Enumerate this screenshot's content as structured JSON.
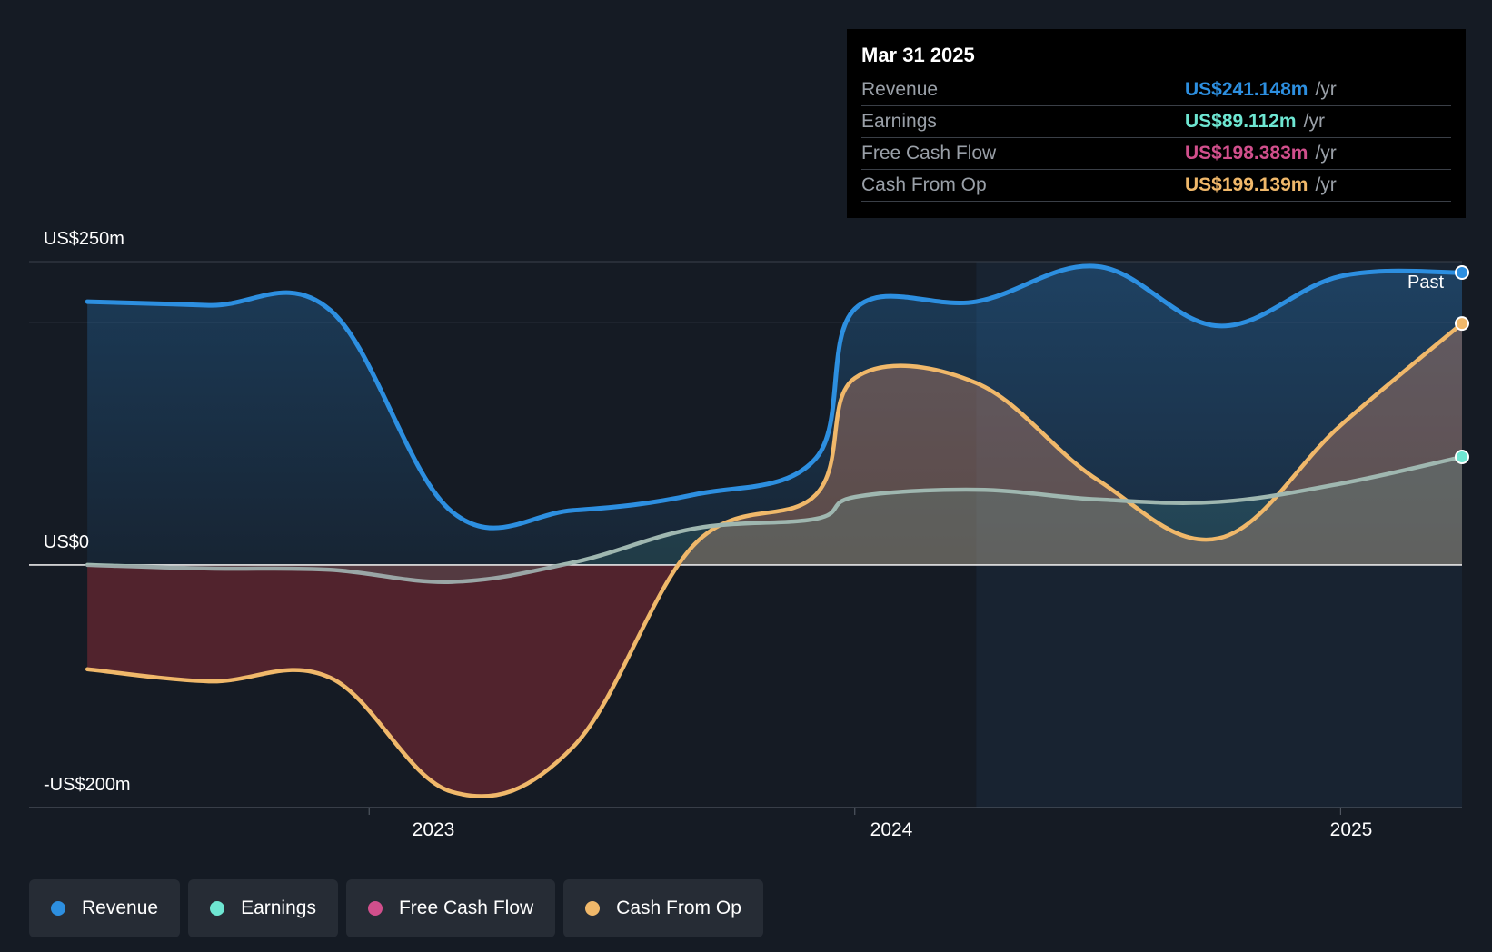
{
  "tooltip": {
    "date": "Mar 31 2025",
    "rows": [
      {
        "label": "Revenue",
        "value": "US$241.148m",
        "unit": "/yr",
        "color": "#2d8fe0"
      },
      {
        "label": "Earnings",
        "value": "US$89.112m",
        "unit": "/yr",
        "color": "#6ee6d2"
      },
      {
        "label": "Free Cash Flow",
        "value": "US$198.383m",
        "unit": "/yr",
        "color": "#d14f8c"
      },
      {
        "label": "Cash From Op",
        "value": "US$199.139m",
        "unit": "/yr",
        "color": "#f0b86a"
      }
    ]
  },
  "past_label": "Past",
  "legend": [
    {
      "label": "Revenue",
      "color": "#2d8fe0"
    },
    {
      "label": "Earnings",
      "color": "#6ee6d2"
    },
    {
      "label": "Free Cash Flow",
      "color": "#d14f8c"
    },
    {
      "label": "Cash From Op",
      "color": "#f0b86a"
    }
  ],
  "chart_data": {
    "type": "area",
    "y_tick_labels": [
      "US$250m",
      "US$0",
      "-US$200m"
    ],
    "x_tick_labels": [
      "2023",
      "2024",
      "2025"
    ],
    "ylim": [
      -200,
      250
    ],
    "xlim": [
      2022.3,
      2025.25
    ],
    "grid": true,
    "legend_position": "bottom",
    "past_boundary_x": 2024.25,
    "series": [
      {
        "name": "Revenue",
        "color": "#2d8fe0",
        "x": [
          2022.42,
          2022.67,
          2022.92,
          2023.17,
          2023.42,
          2023.67,
          2023.92,
          2024.0,
          2024.25,
          2024.5,
          2024.75,
          2025.0,
          2025.25
        ],
        "y": [
          217,
          214,
          210,
          44,
          45,
          58,
          88,
          211,
          217,
          246,
          197,
          238,
          241
        ]
      },
      {
        "name": "Earnings",
        "color": "#6ee6d2",
        "x": [
          2022.42,
          2022.67,
          2022.92,
          2023.17,
          2023.42,
          2023.67,
          2023.92,
          2024.0,
          2024.25,
          2024.5,
          2024.75,
          2025.0,
          2025.25
        ],
        "y": [
          0,
          -3,
          -4,
          -14,
          2,
          30,
          38,
          56,
          62,
          54,
          52,
          67,
          89
        ]
      },
      {
        "name": "Free Cash Flow",
        "color": "#d14f8c",
        "x": [
          2022.42,
          2022.67,
          2022.92,
          2023.17,
          2023.42,
          2023.67,
          2023.92,
          2024.0,
          2024.25,
          2024.5,
          2024.75,
          2025.0,
          2025.25
        ],
        "y": [
          -86,
          -96,
          -93,
          -187,
          -150,
          17,
          58,
          154,
          150,
          70,
          22,
          115,
          198
        ]
      },
      {
        "name": "Cash From Op",
        "color": "#f0b86a",
        "x": [
          2022.42,
          2022.67,
          2022.92,
          2023.17,
          2023.42,
          2023.67,
          2023.92,
          2024.0,
          2024.25,
          2024.5,
          2024.75,
          2025.0,
          2025.25
        ],
        "y": [
          -86,
          -96,
          -93,
          -187,
          -150,
          17,
          58,
          154,
          150,
          70,
          22,
          115,
          199
        ]
      }
    ]
  }
}
